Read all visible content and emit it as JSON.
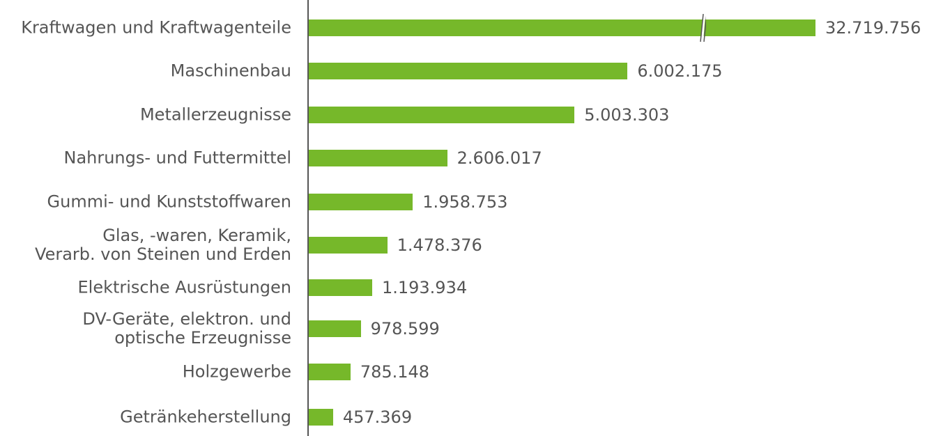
{
  "chart_data": {
    "type": "bar",
    "orientation": "horizontal",
    "color": "#76b82a",
    "axis_break": true,
    "categories": [
      "Kraftwagen und Kraftwagenteile",
      "Maschinenbau",
      "Metallerzeugnisse",
      "Nahrungs- und Futtermittel",
      "Gummi- und Kunststoffwaren",
      "Glas, -waren, Keramik,\nVerarb. von Steinen und Erden",
      "Elektrische Ausrüstungen",
      "DV-Geräte, elektron. und\noptische Erzeugnisse",
      "Holzgewerbe",
      "Getränkeherstellung"
    ],
    "values": [
      32719756,
      6002175,
      5003303,
      2606017,
      1958753,
      1478376,
      1193934,
      978599,
      785148,
      457369
    ],
    "value_labels": [
      "32.719.756",
      "6.002.175",
      "5.003.303",
      "2.606.017",
      "1.958.753",
      "1.478.376",
      "1.193.934",
      "978.599",
      "785.148",
      "457.369"
    ]
  }
}
